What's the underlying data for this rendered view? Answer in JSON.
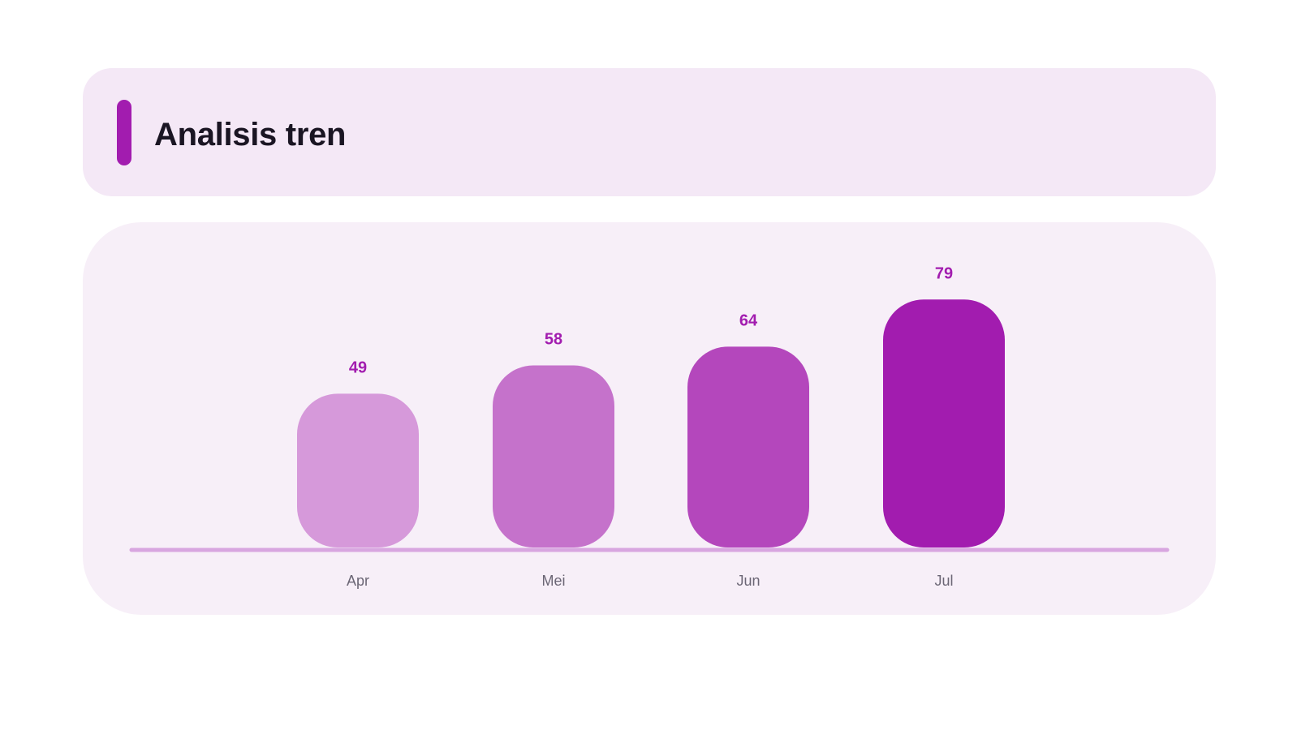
{
  "header": {
    "title": "Analisis tren"
  },
  "colors": {
    "accent": "#a21caf",
    "title_card_bg": "#f4e8f6",
    "chart_card_bg": "#f7eff8",
    "baseline": "#d8a6e0",
    "value_label": "#a21caf",
    "bar_colors": [
      "#d699da",
      "#c572cb",
      "#b447bc",
      "#a21caf"
    ]
  },
  "chart_data": {
    "type": "bar",
    "title": "Analisis tren",
    "xlabel": "",
    "ylabel": "",
    "categories": [
      "Apr",
      "Mei",
      "Jun",
      "Jul"
    ],
    "values": [
      49,
      58,
      64,
      79
    ],
    "ylim": [
      0,
      100
    ],
    "grid": false,
    "legend": "none",
    "data_labels": true
  }
}
